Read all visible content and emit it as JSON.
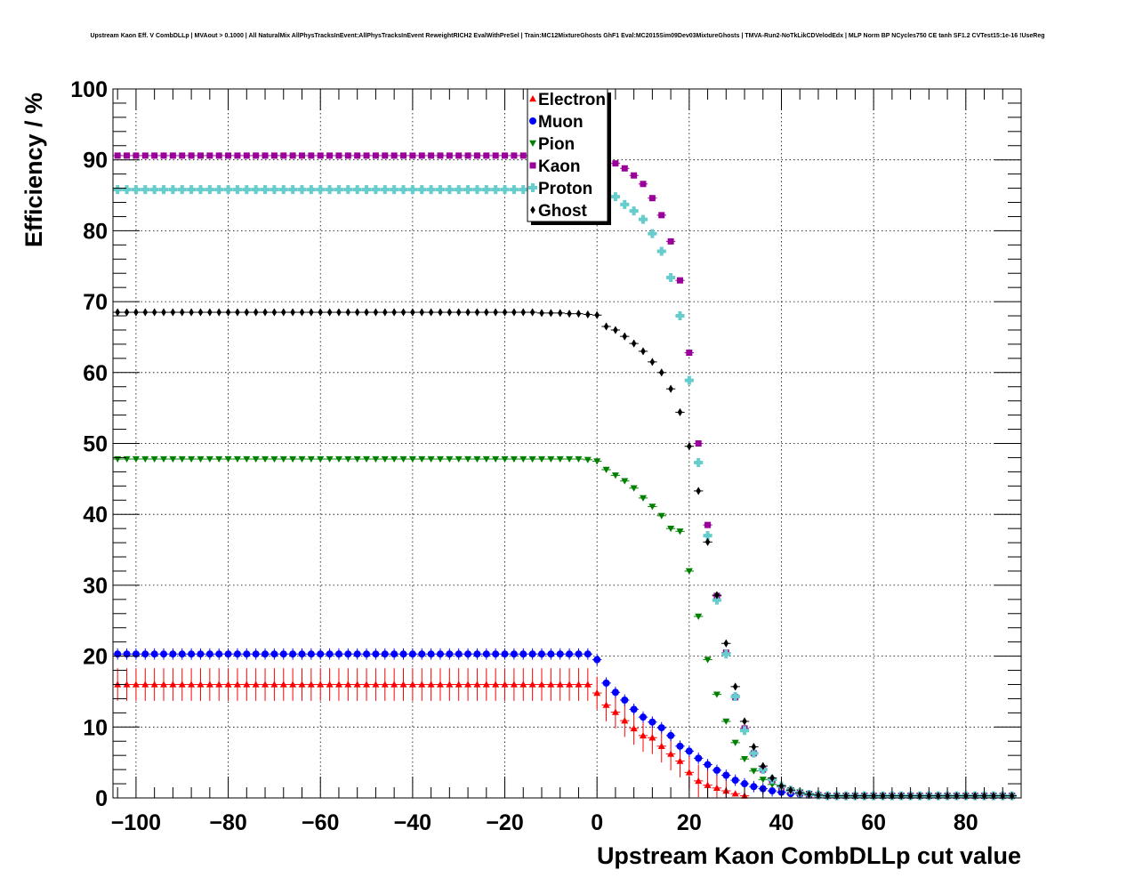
{
  "chart_data": {
    "type": "scatter",
    "title": "Upstream Kaon Eff. V CombDLLp | MVAout > 0.1000 | All NaturalMix AllPhysTracksInEvent:AllPhysTracksInEvent ReweightRICH2 EvalWithPreSel | Train:MC12MixtureGhosts GhF1 Eval:MC2015Sim09Dev03MixtureGhosts | TMVA-Run2-NoTkLikCDVelodEdx | MLP Norm BP NCycles750 CE tanh SF1.2 CVTest15:1e-16 !UseReg",
    "xlabel": "Upstream Kaon CombDLLp cut value",
    "ylabel": "Efficiency / %",
    "xlim": [
      -105,
      92
    ],
    "ylim": [
      0,
      100
    ],
    "x_ticks": [
      -100,
      -80,
      -60,
      -40,
      -20,
      0,
      20,
      40,
      60,
      80
    ],
    "x_tick_labels": [
      "−100",
      "−80",
      "−60",
      "−40",
      "−20",
      "0",
      "20",
      "40",
      "60",
      "80"
    ],
    "y_ticks": [
      0,
      10,
      20,
      30,
      40,
      50,
      60,
      70,
      80,
      90,
      100
    ],
    "y_tick_labels": [
      "0",
      "10",
      "20",
      "30",
      "40",
      "50",
      "60",
      "70",
      "80",
      "90",
      "100"
    ],
    "grid": true,
    "legend_position": "top-center",
    "x": [
      -104,
      -102,
      -100,
      -98,
      -96,
      -94,
      -92,
      -90,
      -88,
      -86,
      -84,
      -82,
      -80,
      -78,
      -76,
      -74,
      -72,
      -70,
      -68,
      -66,
      -64,
      -62,
      -60,
      -58,
      -56,
      -54,
      -52,
      -50,
      -48,
      -46,
      -44,
      -42,
      -40,
      -38,
      -36,
      -34,
      -32,
      -30,
      -28,
      -26,
      -24,
      -22,
      -20,
      -18,
      -16,
      -14,
      -12,
      -10,
      -8,
      -6,
      -4,
      -2,
      0,
      2,
      4,
      6,
      8,
      10,
      12,
      14,
      16,
      18,
      20,
      22,
      24,
      26,
      28,
      30,
      32,
      34,
      36,
      38,
      40,
      42,
      44,
      46,
      48,
      50,
      52,
      54,
      56,
      58,
      60,
      62,
      64,
      66,
      68,
      70,
      72,
      74,
      76,
      78,
      80,
      82,
      84,
      86,
      88,
      90
    ],
    "series": [
      {
        "name": "Electron",
        "color": "#ff0000",
        "marker": "triangle-up",
        "err": 2.3,
        "values": [
          16,
          16,
          16,
          16,
          16,
          16,
          16,
          16,
          16,
          16,
          16,
          16,
          16,
          16,
          16,
          16,
          16,
          16,
          16,
          16,
          16,
          16,
          16,
          16,
          16,
          16,
          16,
          16,
          16,
          16,
          16,
          16,
          16,
          16,
          16,
          16,
          16,
          16,
          16,
          16,
          16,
          16,
          16,
          16,
          16,
          16,
          16,
          16,
          16,
          16,
          16,
          16,
          14.8,
          13.1,
          12.1,
          10.9,
          9.8,
          8.8,
          8.5,
          7.3,
          6.2,
          5.2,
          3.6,
          2.4,
          1.8,
          1.4,
          1,
          0.6,
          0.3
        ]
      },
      {
        "name": "Muon",
        "color": "#0000ff",
        "marker": "circle",
        "err": 0.8,
        "values": [
          20.3,
          20.3,
          20.3,
          20.3,
          20.3,
          20.3,
          20.3,
          20.3,
          20.3,
          20.3,
          20.3,
          20.3,
          20.3,
          20.3,
          20.3,
          20.3,
          20.3,
          20.3,
          20.3,
          20.3,
          20.3,
          20.3,
          20.3,
          20.3,
          20.3,
          20.3,
          20.3,
          20.3,
          20.3,
          20.3,
          20.3,
          20.3,
          20.3,
          20.3,
          20.3,
          20.3,
          20.3,
          20.3,
          20.3,
          20.3,
          20.3,
          20.3,
          20.3,
          20.3,
          20.3,
          20.3,
          20.3,
          20.3,
          20.3,
          20.3,
          20.3,
          20.3,
          19.5,
          16.2,
          14.9,
          13.8,
          12.5,
          11.4,
          10.7,
          9.9,
          8.8,
          7.3,
          6.6,
          5.6,
          4.7,
          3.9,
          3.2,
          2.5,
          2,
          1.6,
          1.3,
          1,
          0.8,
          0.6,
          0.5,
          0.4,
          0.4,
          0.3,
          0.3,
          0.3,
          0.3,
          0.3,
          0.3,
          0.3,
          0.3,
          0.3,
          0.3,
          0.3,
          0.3,
          0.3,
          0.3,
          0.3,
          0.3,
          0.3,
          0.3,
          0.3,
          0.3,
          0.3
        ]
      },
      {
        "name": "Pion",
        "color": "#008000",
        "marker": "triangle-down",
        "err": 0.2,
        "values": [
          47.8,
          47.8,
          47.8,
          47.8,
          47.8,
          47.8,
          47.8,
          47.8,
          47.8,
          47.8,
          47.8,
          47.8,
          47.8,
          47.8,
          47.8,
          47.8,
          47.8,
          47.8,
          47.8,
          47.8,
          47.8,
          47.8,
          47.8,
          47.8,
          47.8,
          47.8,
          47.8,
          47.8,
          47.8,
          47.8,
          47.8,
          47.8,
          47.8,
          47.8,
          47.8,
          47.8,
          47.8,
          47.8,
          47.8,
          47.8,
          47.8,
          47.8,
          47.8,
          47.8,
          47.8,
          47.8,
          47.8,
          47.8,
          47.8,
          47.8,
          47.8,
          47.7,
          47.5,
          46.3,
          45.5,
          44.7,
          43.7,
          42.3,
          41.1,
          39.8,
          38,
          37.6,
          32,
          25.6,
          19.5,
          14.6,
          10.8,
          7.8,
          5.5,
          3.8,
          2.6,
          1.9,
          1.5,
          1.1,
          0.8,
          0.6,
          0.4,
          0.3,
          0.3,
          0.3,
          0.3,
          0.3,
          0.3,
          0.3,
          0.3,
          0.3,
          0.3,
          0.3,
          0.3,
          0.3,
          0.3,
          0.3,
          0.3,
          0.3,
          0.3,
          0.3,
          0.3,
          0.3
        ]
      },
      {
        "name": "Kaon",
        "color": "#990099",
        "marker": "square",
        "err": 0.3,
        "values": [
          90.6,
          90.6,
          90.6,
          90.6,
          90.6,
          90.6,
          90.6,
          90.6,
          90.6,
          90.6,
          90.6,
          90.6,
          90.6,
          90.6,
          90.6,
          90.6,
          90.6,
          90.6,
          90.6,
          90.6,
          90.6,
          90.6,
          90.6,
          90.6,
          90.6,
          90.6,
          90.6,
          90.6,
          90.6,
          90.6,
          90.6,
          90.6,
          90.6,
          90.6,
          90.6,
          90.6,
          90.6,
          90.6,
          90.6,
          90.6,
          90.6,
          90.6,
          90.6,
          90.6,
          90.6,
          90.6,
          90.6,
          90.6,
          90.6,
          90.6,
          90.6,
          90.6,
          90.6,
          90.2,
          89.5,
          88.8,
          87.8,
          86.6,
          84.6,
          82.2,
          78.5,
          73,
          62.8,
          50,
          38.5,
          28.5,
          20.5,
          14.2,
          9.8,
          6.3,
          4,
          2.5,
          1.5,
          1,
          0.7,
          0.5,
          0.4,
          0.3,
          0.3,
          0.3,
          0.3,
          0.3,
          0.3,
          0.3,
          0.3,
          0.3,
          0.3,
          0.3,
          0.3,
          0.3,
          0.3,
          0.3,
          0.3,
          0.3,
          0.3,
          0.3,
          0.3,
          0.3
        ]
      },
      {
        "name": "Proton",
        "color": "#66cccc",
        "marker": "cross",
        "err": 0.4,
        "values": [
          85.8,
          85.8,
          85.8,
          85.8,
          85.8,
          85.8,
          85.8,
          85.8,
          85.8,
          85.8,
          85.8,
          85.8,
          85.8,
          85.8,
          85.8,
          85.8,
          85.8,
          85.8,
          85.8,
          85.8,
          85.8,
          85.8,
          85.8,
          85.8,
          85.8,
          85.8,
          85.8,
          85.8,
          85.8,
          85.8,
          85.8,
          85.8,
          85.8,
          85.8,
          85.8,
          85.8,
          85.8,
          85.8,
          85.8,
          85.8,
          85.8,
          85.8,
          85.8,
          85.8,
          85.8,
          85.8,
          85.8,
          85.8,
          85.8,
          85.8,
          85.8,
          85.8,
          85.8,
          85.6,
          84.8,
          83.7,
          82.8,
          81.6,
          79.6,
          77.1,
          73.4,
          68,
          58.9,
          47.3,
          37,
          27.9,
          20.3,
          14.3,
          9.5,
          6.3,
          4,
          2.6,
          1.7,
          1.1,
          0.7,
          0.5,
          0.4,
          0.3,
          0.3,
          0.3,
          0.3,
          0.3,
          0.3,
          0.3,
          0.3,
          0.3,
          0.3,
          0.3,
          0.3,
          0.3,
          0.3,
          0.3,
          0.3,
          0.3,
          0.3,
          0.3,
          0.3,
          0.3
        ]
      },
      {
        "name": "Ghost",
        "color": "#000000",
        "marker": "diamond",
        "err": 0.5,
        "values": [
          68.5,
          68.5,
          68.5,
          68.5,
          68.5,
          68.5,
          68.5,
          68.5,
          68.5,
          68.5,
          68.5,
          68.5,
          68.5,
          68.5,
          68.5,
          68.5,
          68.5,
          68.5,
          68.5,
          68.5,
          68.5,
          68.5,
          68.5,
          68.5,
          68.5,
          68.5,
          68.5,
          68.5,
          68.5,
          68.5,
          68.5,
          68.5,
          68.5,
          68.5,
          68.5,
          68.5,
          68.5,
          68.5,
          68.5,
          68.5,
          68.5,
          68.5,
          68.5,
          68.5,
          68.5,
          68.5,
          68.4,
          68.4,
          68.4,
          68.3,
          68.3,
          68.2,
          68.1,
          66.5,
          66,
          65.1,
          64.1,
          63,
          61.5,
          60,
          57.7,
          54.4,
          49.6,
          43.3,
          36.1,
          28.6,
          21.8,
          15.7,
          10.8,
          7.2,
          4.5,
          2.8,
          1.7,
          1.1,
          0.7,
          0.5,
          0.4,
          0.3,
          0.3,
          0.3,
          0.3,
          0.3,
          0.3,
          0.3,
          0.3,
          0.3,
          0.3,
          0.3,
          0.3,
          0.3,
          0.3,
          0.3,
          0.3,
          0.3,
          0.3,
          0.3,
          0.3,
          0.3
        ]
      }
    ]
  }
}
